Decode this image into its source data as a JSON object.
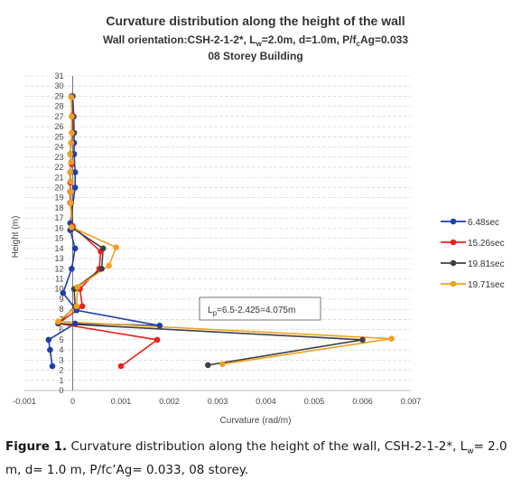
{
  "chart_data": {
    "type": "line",
    "title": "Curvature distribution along the height of the wall",
    "subtitle_parts": {
      "a": "Wall orientation:CSH-2-1-2*, L",
      "a_sub": "w",
      "b": "=2.0m, d=1.0m, P/f",
      "b_sub": "c",
      "c": "Ag=0.033"
    },
    "subtitle2": "08 Storey Building",
    "xlabel": "Curvature (rad/m)",
    "ylabel": "Height (m)",
    "xlim": [
      -0.001,
      0.007
    ],
    "ylim": [
      0,
      31
    ],
    "x_ticks": [
      "-0.001",
      "0",
      "0.001",
      "0.002",
      "0.003",
      "0.004",
      "0.005",
      "0.006",
      "0.007"
    ],
    "x_tick_values": [
      -0.001,
      0,
      0.001,
      0.002,
      0.003,
      0.004,
      0.005,
      0.006,
      0.007
    ],
    "y_ticks": [
      "0",
      "1",
      "2",
      "3",
      "4",
      "5",
      "6",
      "7",
      "8",
      "9",
      "10",
      "11",
      "12",
      "13",
      "14",
      "15",
      "16",
      "17",
      "18",
      "19",
      "20",
      "21",
      "22",
      "23",
      "24",
      "25",
      "26",
      "27",
      "28",
      "29",
      "30",
      "31"
    ],
    "grid": "horizontal",
    "legend_position": "right",
    "annotation": {
      "main": "L",
      "sub": "p",
      "rest": "=6.5-2.425=4.075m",
      "x": 0.0031,
      "y": 7.6
    },
    "series": [
      {
        "name": "6.48sec",
        "color": "#1f3fa8",
        "x": [
          -0.00042,
          -0.00047,
          -0.0005,
          5e-05,
          0.0018,
          8e-05,
          -0.0002,
          -2e-05,
          5e-05,
          -5e-05,
          -5e-05,
          5e-05,
          5e-05,
          3e-05,
          3e-05,
          3e-05,
          2e-05,
          0.0
        ],
        "y": [
          2.4,
          4.0,
          5.0,
          6.6,
          6.4,
          7.9,
          9.6,
          12.0,
          14.0,
          15.8,
          16.5,
          20.0,
          21.5,
          23.3,
          24.4,
          25.4,
          27.0,
          29.0
        ]
      },
      {
        "name": "15.26sec",
        "color": "#e8231c",
        "x": [
          0.001,
          0.00175,
          -0.0003,
          0.0002,
          0.00015,
          0.00055,
          0.00058,
          0.0,
          -5e-05,
          -5e-05,
          -5e-05,
          -5e-05,
          -2e-05,
          -5e-05,
          -3e-05,
          0.0,
          0.0,
          -2e-05
        ],
        "y": [
          2.4,
          5.0,
          6.6,
          8.3,
          10.0,
          12.0,
          13.7,
          16.2,
          18.5,
          19.6,
          20.5,
          21.5,
          22.3,
          23.3,
          24.4,
          25.4,
          27.1,
          29.0
        ]
      },
      {
        "name": "19.81sec",
        "color": "#404040",
        "x": [
          0.0028,
          0.006,
          -0.0003,
          5e-05,
          3e-05,
          0.0006,
          0.00063,
          0.0,
          -3e-05,
          -4e-05,
          -4e-05,
          -5e-05,
          -3e-05,
          -5e-05,
          -3e-05,
          -1e-05,
          -1e-05,
          -2e-05
        ],
        "y": [
          2.5,
          5.0,
          6.6,
          8.3,
          10.0,
          12.0,
          14.0,
          16.0,
          18.5,
          19.6,
          20.6,
          21.5,
          22.5,
          23.3,
          24.4,
          25.4,
          27.0,
          29.0
        ]
      },
      {
        "name": "19.71sec",
        "color": "#f0a020",
        "x": [
          0.0031,
          0.0066,
          -0.0003,
          8e-05,
          0.0001,
          0.00075,
          0.0009,
          -2e-05,
          -4e-05,
          -4e-05,
          -4e-05,
          -5e-05,
          -3e-05,
          -5e-05,
          -3e-05,
          -2e-05,
          -2e-05,
          -3e-05
        ],
        "y": [
          2.6,
          5.1,
          6.8,
          8.3,
          10.2,
          12.3,
          14.1,
          16.1,
          18.5,
          19.6,
          20.6,
          21.5,
          22.5,
          23.3,
          24.4,
          25.4,
          27.0,
          28.9
        ]
      }
    ]
  },
  "caption": {
    "label": "Figure 1.",
    "t1": " Curvature distribution along the height of the wall, CSH-2-1-2*, L",
    "t1_sub": "w",
    "t2": "= 2.0 m, d= 1.0 m, P/fc’Ag= 0.033, 08 storey."
  }
}
